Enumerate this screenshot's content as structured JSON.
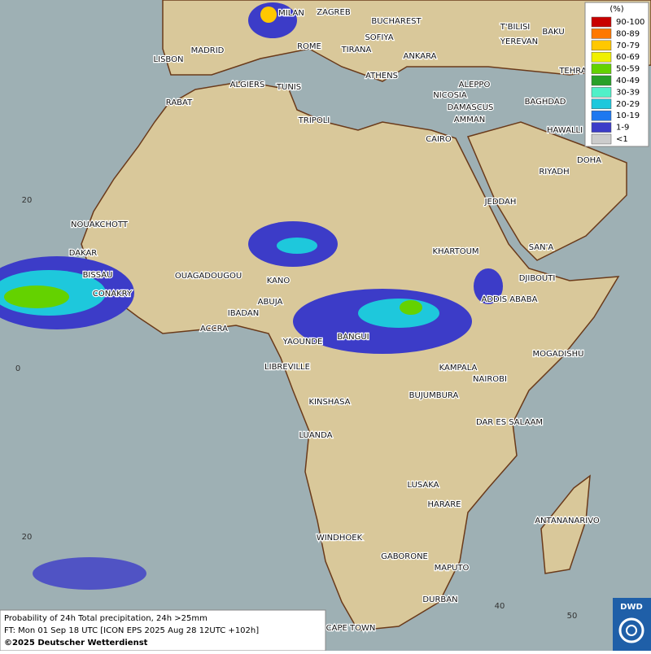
{
  "map": {
    "cities": [
      "MILAN",
      "ZAGREB",
      "BUCHAREST",
      "T'BILISI",
      "BAKU",
      "MADRID",
      "ROME",
      "SOFIYA",
      "YEREVAN",
      "LISBON",
      "TIRANA",
      "ANKARA",
      "TEHRA",
      "ATHENS",
      "ALGIERS",
      "TUNIS",
      "ALEPPO",
      "RABAT",
      "NICOSIA",
      "BAGHDAD",
      "DAMASCUS",
      "TRIPOLI",
      "AMMAN",
      "HAWALLI",
      "CAIRO",
      "DOHA",
      "RIYADH",
      "JEDDAH",
      "NOUAKCHOTT",
      "SAN'A",
      "DAKAR",
      "KHARTOUM",
      "BISSAU",
      "OUAGADOUGOU",
      "KANO",
      "DJIBOUTI",
      "CONAKRY",
      "ABUJA",
      "ADDIS ABABA",
      "IBADAN",
      "ACCRA",
      "BANGUI",
      "YAOUNDE",
      "MOGADISHU",
      "LIBREVILLE",
      "KAMPALA",
      "NAIROBI",
      "KINSHASA",
      "BUJUMBURA",
      "DAR ES SALAAM",
      "LUANDA",
      "LUSAKA",
      "HARARE",
      "ANTANANARIVO",
      "WINDHOEK",
      "GABORONE",
      "MAPUTO",
      "DURBAN",
      "CAPE TOWN"
    ],
    "lat_labels": [
      20,
      0,
      20
    ],
    "lon_labels": [
      40,
      50
    ]
  },
  "legend": {
    "title": "(%)",
    "items": [
      {
        "label": "90-100",
        "color": "#c80000"
      },
      {
        "label": "80-89",
        "color": "#ff7800"
      },
      {
        "label": "70-79",
        "color": "#ffc800"
      },
      {
        "label": "60-69",
        "color": "#f0f000"
      },
      {
        "label": "50-59",
        "color": "#64d200"
      },
      {
        "label": "40-49",
        "color": "#28a028"
      },
      {
        "label": "30-39",
        "color": "#50f0c8"
      },
      {
        "label": "20-29",
        "color": "#1ec8dc"
      },
      {
        "label": "10-19",
        "color": "#1e78f0"
      },
      {
        "label": "1-9",
        "color": "#3c3cc8"
      },
      {
        "label": "<1",
        "color": "#cccccc"
      }
    ]
  },
  "caption": {
    "lines": [
      "Probability of 24h Total precipitation, 24h >25mm",
      "FT: Mon 01 Sep 18 UTC [ICON EPS 2025 Aug 28 12UTC +102h]"
    ],
    "copyright": "©2025 Deutscher Wetterdienst"
  },
  "logo": "DWD"
}
